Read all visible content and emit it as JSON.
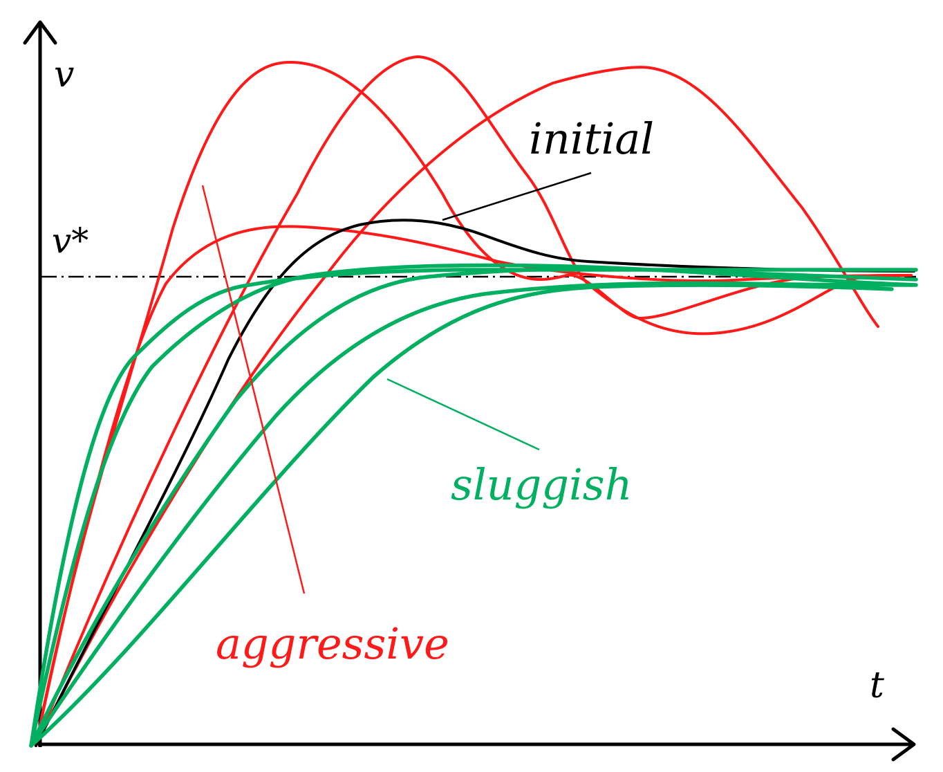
{
  "axes": {
    "y_label": "v",
    "x_label": "t",
    "reference_label": "v*"
  },
  "labels": {
    "initial": "initial",
    "sluggish": "sluggish",
    "aggressive": "aggressive"
  },
  "colors": {
    "initial": "#000000",
    "aggressive": "#ff1a1a",
    "sluggish": "#00b060",
    "axes": "#000000"
  },
  "series": {
    "initial_count": 1,
    "aggressive_count": 4,
    "sluggish_count": 5
  }
}
